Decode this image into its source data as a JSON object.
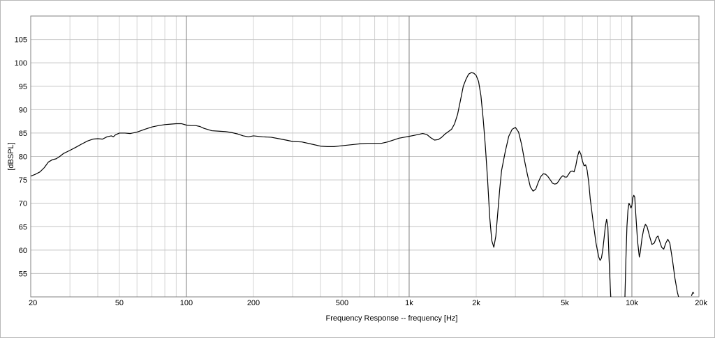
{
  "chart_data": {
    "type": "line",
    "title": "",
    "xlabel": "Frequency Response -- frequency [Hz]",
    "ylabel": "[dBSPL]",
    "x_scale": "log",
    "xlim": [
      20,
      20000
    ],
    "ylim": [
      50,
      110
    ],
    "grid": true,
    "x_ticks": [
      {
        "value": 20,
        "label": "20"
      },
      {
        "value": 50,
        "label": "50"
      },
      {
        "value": 100,
        "label": "100"
      },
      {
        "value": 200,
        "label": "200"
      },
      {
        "value": 500,
        "label": "500"
      },
      {
        "value": 1000,
        "label": "1k"
      },
      {
        "value": 2000,
        "label": "2k"
      },
      {
        "value": 5000,
        "label": "5k"
      },
      {
        "value": 10000,
        "label": "10k"
      },
      {
        "value": 20000,
        "label": "20k"
      }
    ],
    "y_ticks": [
      55,
      60,
      65,
      70,
      75,
      80,
      85,
      90,
      95,
      100,
      105
    ],
    "series": [
      {
        "name": "",
        "color": "#000000",
        "points": [
          [
            20,
            75.8
          ],
          [
            21,
            76.2
          ],
          [
            22,
            76.7
          ],
          [
            23,
            77.6
          ],
          [
            24,
            78.8
          ],
          [
            25,
            79.3
          ],
          [
            26,
            79.5
          ],
          [
            27,
            80.0
          ],
          [
            28,
            80.6
          ],
          [
            30,
            81.3
          ],
          [
            32,
            82.0
          ],
          [
            34,
            82.7
          ],
          [
            36,
            83.3
          ],
          [
            38,
            83.7
          ],
          [
            40,
            83.8
          ],
          [
            42,
            83.7
          ],
          [
            44,
            84.2
          ],
          [
            46,
            84.4
          ],
          [
            47,
            84.2
          ],
          [
            48,
            84.6
          ],
          [
            50,
            85.0
          ],
          [
            53,
            85.0
          ],
          [
            56,
            84.9
          ],
          [
            60,
            85.2
          ],
          [
            65,
            85.8
          ],
          [
            70,
            86.3
          ],
          [
            75,
            86.6
          ],
          [
            80,
            86.8
          ],
          [
            85,
            86.9
          ],
          [
            90,
            87.0
          ],
          [
            95,
            87.0
          ],
          [
            100,
            86.7
          ],
          [
            105,
            86.6
          ],
          [
            110,
            86.6
          ],
          [
            115,
            86.4
          ],
          [
            120,
            86.0
          ],
          [
            130,
            85.5
          ],
          [
            140,
            85.4
          ],
          [
            150,
            85.3
          ],
          [
            160,
            85.1
          ],
          [
            170,
            84.8
          ],
          [
            180,
            84.4
          ],
          [
            190,
            84.2
          ],
          [
            200,
            84.4
          ],
          [
            220,
            84.2
          ],
          [
            240,
            84.1
          ],
          [
            260,
            83.8
          ],
          [
            280,
            83.5
          ],
          [
            300,
            83.2
          ],
          [
            330,
            83.1
          ],
          [
            360,
            82.7
          ],
          [
            400,
            82.2
          ],
          [
            430,
            82.1
          ],
          [
            460,
            82.1
          ],
          [
            500,
            82.3
          ],
          [
            550,
            82.5
          ],
          [
            600,
            82.7
          ],
          [
            650,
            82.8
          ],
          [
            700,
            82.8
          ],
          [
            750,
            82.8
          ],
          [
            800,
            83.1
          ],
          [
            850,
            83.5
          ],
          [
            900,
            83.9
          ],
          [
            950,
            84.1
          ],
          [
            1000,
            84.3
          ],
          [
            1050,
            84.5
          ],
          [
            1100,
            84.7
          ],
          [
            1150,
            84.9
          ],
          [
            1200,
            84.7
          ],
          [
            1250,
            84.0
          ],
          [
            1300,
            83.5
          ],
          [
            1350,
            83.6
          ],
          [
            1400,
            84.1
          ],
          [
            1450,
            84.8
          ],
          [
            1500,
            85.3
          ],
          [
            1550,
            85.8
          ],
          [
            1600,
            87.0
          ],
          [
            1650,
            89.0
          ],
          [
            1700,
            92.0
          ],
          [
            1750,
            95.0
          ],
          [
            1800,
            96.5
          ],
          [
            1850,
            97.6
          ],
          [
            1900,
            97.9
          ],
          [
            1950,
            97.8
          ],
          [
            2000,
            97.3
          ],
          [
            2050,
            96.0
          ],
          [
            2100,
            93.0
          ],
          [
            2150,
            88.0
          ],
          [
            2200,
            82.0
          ],
          [
            2250,
            75.0
          ],
          [
            2300,
            67.0
          ],
          [
            2350,
            62.0
          ],
          [
            2400,
            60.6
          ],
          [
            2450,
            63.0
          ],
          [
            2500,
            68.0
          ],
          [
            2550,
            73.0
          ],
          [
            2600,
            77.0
          ],
          [
            2700,
            81.0
          ],
          [
            2800,
            84.3
          ],
          [
            2900,
            85.8
          ],
          [
            3000,
            86.2
          ],
          [
            3100,
            85.2
          ],
          [
            3200,
            82.5
          ],
          [
            3300,
            79.0
          ],
          [
            3400,
            76.0
          ],
          [
            3500,
            73.5
          ],
          [
            3600,
            72.6
          ],
          [
            3700,
            73.0
          ],
          [
            3800,
            74.5
          ],
          [
            3900,
            75.7
          ],
          [
            4000,
            76.3
          ],
          [
            4100,
            76.2
          ],
          [
            4200,
            75.7
          ],
          [
            4300,
            75.0
          ],
          [
            4400,
            74.3
          ],
          [
            4500,
            74.1
          ],
          [
            4600,
            74.2
          ],
          [
            4700,
            74.8
          ],
          [
            4800,
            75.5
          ],
          [
            4900,
            75.9
          ],
          [
            5000,
            75.6
          ],
          [
            5100,
            75.6
          ],
          [
            5200,
            76.2
          ],
          [
            5300,
            76.8
          ],
          [
            5400,
            76.9
          ],
          [
            5500,
            76.7
          ],
          [
            5600,
            78.0
          ],
          [
            5700,
            80.0
          ],
          [
            5800,
            81.2
          ],
          [
            5900,
            80.5
          ],
          [
            6000,
            79.0
          ],
          [
            6100,
            78.0
          ],
          [
            6200,
            78.2
          ],
          [
            6300,
            77.0
          ],
          [
            6400,
            74.5
          ],
          [
            6500,
            71.0
          ],
          [
            6700,
            66.0
          ],
          [
            6900,
            61.5
          ],
          [
            7100,
            58.5
          ],
          [
            7200,
            57.8
          ],
          [
            7300,
            58.3
          ],
          [
            7400,
            60.0
          ],
          [
            7500,
            62.5
          ],
          [
            7600,
            65.0
          ],
          [
            7700,
            66.6
          ],
          [
            7800,
            65.0
          ],
          [
            7900,
            58.0
          ],
          [
            8000,
            52.0
          ],
          [
            8050,
            49.5
          ],
          [
            9300,
            49.5
          ],
          [
            9400,
            58.0
          ],
          [
            9500,
            65.0
          ],
          [
            9600,
            68.5
          ],
          [
            9700,
            70.0
          ],
          [
            9800,
            69.6
          ],
          [
            9900,
            69.0
          ],
          [
            10000,
            69.5
          ],
          [
            10100,
            71.2
          ],
          [
            10200,
            71.7
          ],
          [
            10300,
            71.3
          ],
          [
            10400,
            68.0
          ],
          [
            10600,
            62.0
          ],
          [
            10800,
            58.5
          ],
          [
            10900,
            59.5
          ],
          [
            11100,
            62.5
          ],
          [
            11300,
            64.5
          ],
          [
            11500,
            65.5
          ],
          [
            11700,
            65.0
          ],
          [
            12000,
            63.0
          ],
          [
            12300,
            61.2
          ],
          [
            12600,
            61.5
          ],
          [
            12900,
            62.7
          ],
          [
            13100,
            63.0
          ],
          [
            13300,
            62.0
          ],
          [
            13600,
            60.6
          ],
          [
            13900,
            60.2
          ],
          [
            14200,
            61.5
          ],
          [
            14500,
            62.3
          ],
          [
            14800,
            61.5
          ],
          [
            15200,
            58.0
          ],
          [
            15600,
            54.0
          ],
          [
            16000,
            51.0
          ],
          [
            16300,
            49.5
          ]
        ]
      }
    ],
    "series_tail": [
      [
        18500,
        50.2
      ],
      [
        18800,
        51.0
      ],
      [
        19000,
        50.7
      ]
    ]
  }
}
